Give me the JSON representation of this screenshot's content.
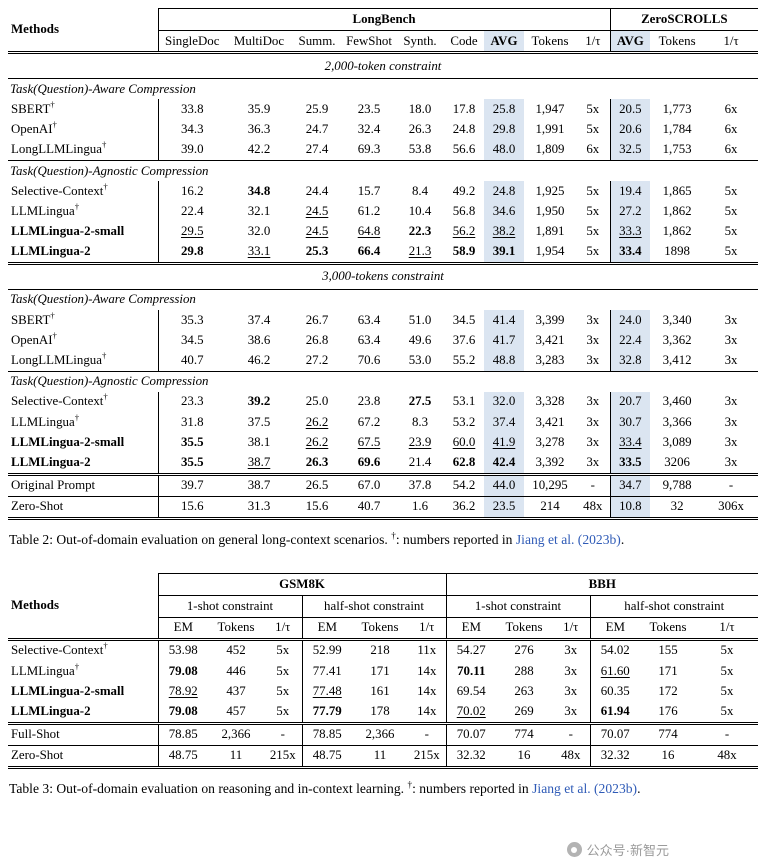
{
  "page": {
    "watermark_text": "公众号·新智元"
  },
  "colors": {
    "avg_highlight": "#dbe5f1",
    "citation_blue": "#2f5bb7",
    "watermark_gray": "#9b9b9b"
  },
  "symbols": {
    "dagger": "†"
  },
  "table2": {
    "header": {
      "methods_label": "Methods",
      "groups": [
        {
          "label": "LongBench",
          "span": 9
        },
        {
          "label": "ZeroSCROLLS",
          "span": 3
        }
      ],
      "columns": [
        "SingleDoc",
        "MultiDoc",
        "Summ.",
        "FewShot",
        "Synth.",
        "Code",
        "AVG|b",
        "Tokens",
        "1/τ",
        "AVG|b",
        "Tokens",
        "1/τ"
      ],
      "highlight_cols": [
        6,
        9
      ],
      "vbar_cols": [
        0,
        9
      ]
    },
    "rows": [
      {
        "type": "section",
        "label": "2,000-token constraint",
        "rule_bottom": "single"
      },
      {
        "type": "subheader",
        "label": "Task(Question)-Aware Compression"
      },
      {
        "type": "data",
        "method": "SBERT|d",
        "cells": [
          "33.8",
          "35.9",
          "25.9",
          "23.5",
          "18.0",
          "17.8",
          "25.8",
          "1,947",
          "5x",
          "20.5",
          "1,773",
          "6x"
        ]
      },
      {
        "type": "data",
        "method": "OpenAI|d",
        "cells": [
          "34.3",
          "36.3",
          "24.7",
          "32.4",
          "26.3",
          "24.8",
          "29.8",
          "1,991",
          "5x",
          "20.6",
          "1,784",
          "6x"
        ]
      },
      {
        "type": "data",
        "method": "LongLLMLingua|d",
        "cells": [
          "39.0",
          "42.2",
          "27.4",
          "69.3",
          "53.8",
          "56.6",
          "48.0",
          "1,809",
          "6x",
          "32.5",
          "1,753",
          "6x"
        ]
      },
      {
        "type": "subheader",
        "label": "Task(Question)-Agnostic Compression",
        "rule_top": "single"
      },
      {
        "type": "data",
        "method": "Selective-Context|d",
        "cells": [
          "16.2",
          "34.8|b",
          "24.4",
          "15.7",
          "8.4",
          "49.2",
          "24.8",
          "1,925",
          "5x",
          "19.4",
          "1,865",
          "5x"
        ]
      },
      {
        "type": "data",
        "method": "LLMLingua|d",
        "cells": [
          "22.4",
          "32.1",
          "24.5|u",
          "61.2",
          "10.4",
          "56.8",
          "34.6",
          "1,950",
          "5x",
          "27.2",
          "1,862",
          "5x"
        ]
      },
      {
        "type": "data",
        "method": "LLMLingua-2-small|b",
        "cells": [
          "29.5|u",
          "32.0",
          "24.5|u",
          "64.8|u",
          "22.3|b",
          "56.2|u",
          "38.2|u",
          "1,891",
          "5x",
          "33.3|u",
          "1,862",
          "5x"
        ]
      },
      {
        "type": "data",
        "method": "LLMLingua-2|b",
        "cells": [
          "29.8|b",
          "33.1|u",
          "25.3|b",
          "66.4|b",
          "21.3|u",
          "58.9|b",
          "39.1|b",
          "1,954",
          "5x",
          "33.4|b",
          "1898",
          "5x"
        ]
      },
      {
        "type": "section",
        "label": "3,000-tokens constraint",
        "rule_top": "double",
        "rule_bottom": "single"
      },
      {
        "type": "subheader",
        "label": "Task(Question)-Aware Compression"
      },
      {
        "type": "data",
        "method": "SBERT|d",
        "cells": [
          "35.3",
          "37.4",
          "26.7",
          "63.4",
          "51.0",
          "34.5",
          "41.4",
          "3,399",
          "3x",
          "24.0",
          "3,340",
          "3x"
        ]
      },
      {
        "type": "data",
        "method": "OpenAI|d",
        "cells": [
          "34.5",
          "38.6",
          "26.8",
          "63.4",
          "49.6",
          "37.6",
          "41.7",
          "3,421",
          "3x",
          "22.4",
          "3,362",
          "3x"
        ]
      },
      {
        "type": "data",
        "method": "LongLLMLingua|d",
        "cells": [
          "40.7",
          "46.2",
          "27.2",
          "70.6",
          "53.0",
          "55.2",
          "48.8",
          "3,283",
          "3x",
          "32.8",
          "3,412",
          "3x"
        ]
      },
      {
        "type": "subheader",
        "label": "Task(Question)-Agnostic Compression",
        "rule_top": "single"
      },
      {
        "type": "data",
        "method": "Selective-Context|d",
        "cells": [
          "23.3",
          "39.2|b",
          "25.0",
          "23.8",
          "27.5|b",
          "53.1",
          "32.0",
          "3,328",
          "3x",
          "20.7",
          "3,460",
          "3x"
        ]
      },
      {
        "type": "data",
        "method": "LLMLingua|d",
        "cells": [
          "31.8",
          "37.5",
          "26.2|u",
          "67.2",
          "8.3",
          "53.2",
          "37.4",
          "3,421",
          "3x",
          "30.7",
          "3,366",
          "3x"
        ]
      },
      {
        "type": "data",
        "method": "LLMLingua-2-small|b",
        "cells": [
          "35.5|b",
          "38.1",
          "26.2|u",
          "67.5|u",
          "23.9|u",
          "60.0|u",
          "41.9|u",
          "3,278",
          "3x",
          "33.4|u",
          "3,089",
          "3x"
        ]
      },
      {
        "type": "data",
        "method": "LLMLingua-2|b",
        "cells": [
          "35.5|b",
          "38.7|u",
          "26.3|b",
          "69.6|b",
          "21.4",
          "62.8|b",
          "42.4|b",
          "3,392",
          "3x",
          "33.5|b",
          "3206",
          "3x"
        ]
      },
      {
        "type": "data",
        "method": "Original Prompt",
        "cells": [
          "39.7",
          "38.7",
          "26.5",
          "67.0",
          "37.8",
          "54.2",
          "44.0",
          "10,295",
          "-",
          "34.7",
          "9,788",
          "-"
        ],
        "rule_top": "double"
      },
      {
        "type": "data",
        "method": "Zero-Shot",
        "cells": [
          "15.6",
          "31.3",
          "15.6",
          "40.7",
          "1.6",
          "36.2",
          "23.5",
          "214",
          "48x",
          "10.8",
          "32",
          "306x"
        ],
        "rule_top": "single",
        "rule_bottom": "double"
      }
    ],
    "caption": {
      "prefix": "Table 2: Out-of-domain evaluation on general long-context scenarios. ",
      "note": ": numbers reported in ",
      "citation": "Jiang et al. (2023b)",
      "suffix": "."
    }
  },
  "table3": {
    "header": {
      "methods_label": "Methods",
      "groups": [
        {
          "label": "GSM8K",
          "span": 6
        },
        {
          "label": "BBH",
          "span": 6
        }
      ],
      "subgroups": [
        {
          "label": "1-shot constraint",
          "span": 3
        },
        {
          "label": "half-shot constraint",
          "span": 3
        },
        {
          "label": "1-shot constraint",
          "span": 3
        },
        {
          "label": "half-shot constraint",
          "span": 3
        }
      ],
      "columns": [
        "EM",
        "Tokens",
        "1/τ",
        "EM",
        "Tokens",
        "1/τ",
        "EM",
        "Tokens",
        "1/τ",
        "EM",
        "Tokens",
        "1/τ"
      ],
      "highlight_cols": [],
      "vbar_cols": [
        0,
        3,
        6,
        9
      ]
    },
    "rows": [
      {
        "type": "data",
        "method": "Selective-Context|d",
        "cells": [
          "53.98",
          "452",
          "5x",
          "52.99",
          "218",
          "11x",
          "54.27",
          "276",
          "3x",
          "54.02",
          "155",
          "5x"
        ]
      },
      {
        "type": "data",
        "method": "LLMLingua|d",
        "cells": [
          "79.08|b",
          "446",
          "5x",
          "77.41",
          "171",
          "14x",
          "70.11|b",
          "288",
          "3x",
          "61.60|u",
          "171",
          "5x"
        ]
      },
      {
        "type": "data",
        "method": "LLMLingua-2-small|b",
        "cells": [
          "78.92|u",
          "437",
          "5x",
          "77.48|u",
          "161",
          "14x",
          "69.54",
          "263",
          "3x",
          "60.35",
          "172",
          "5x"
        ]
      },
      {
        "type": "data",
        "method": "LLMLingua-2|b",
        "cells": [
          "79.08|b",
          "457",
          "5x",
          "77.79|b",
          "178",
          "14x",
          "70.02|u",
          "269",
          "3x",
          "61.94|b",
          "176",
          "5x"
        ]
      },
      {
        "type": "data",
        "method": "Full-Shot",
        "cells": [
          "78.85",
          "2,366",
          "-",
          "78.85",
          "2,366",
          "-",
          "70.07",
          "774",
          "-",
          "70.07",
          "774",
          "-"
        ],
        "rule_top": "double"
      },
      {
        "type": "data",
        "method": "Zero-Shot",
        "cells": [
          "48.75",
          "11",
          "215x",
          "48.75",
          "11",
          "215x",
          "32.32",
          "16",
          "48x",
          "32.32",
          "16",
          "48x"
        ],
        "rule_top": "single",
        "rule_bottom": "double"
      }
    ],
    "caption": {
      "prefix": "Table 3: Out-of-domain evaluation on reasoning and in-context learning. ",
      "note": ": numbers reported in ",
      "citation": "Jiang et al. (2023b)",
      "suffix": "."
    }
  }
}
